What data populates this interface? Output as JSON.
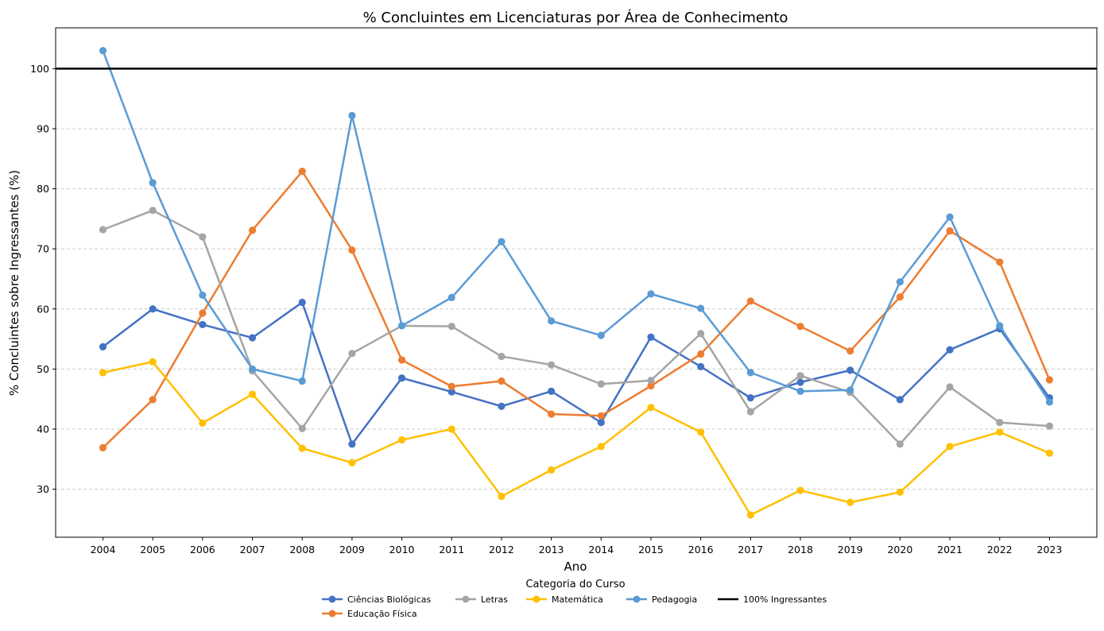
{
  "chart_data": {
    "type": "line",
    "title": "% Concluintes em Licenciaturas por Área de Conhecimento",
    "xlabel": "Ano",
    "ylabel": "% Concluintes sobre Ingressantes (%)",
    "x": [
      2004,
      2005,
      2006,
      2007,
      2008,
      2009,
      2010,
      2011,
      2012,
      2013,
      2014,
      2015,
      2016,
      2017,
      2018,
      2019,
      2020,
      2021,
      2022,
      2023
    ],
    "yticks": [
      30,
      40,
      50,
      60,
      70,
      80,
      90,
      100
    ],
    "ylim": [
      22,
      106.8
    ],
    "grid": "y dashed",
    "legend_title": "Categoria do Curso",
    "legend_position": "below",
    "series": [
      {
        "name": "Ciências Biológicas",
        "color": "#4472c4",
        "values": [
          53.7,
          60.0,
          57.4,
          55.2,
          61.1,
          37.5,
          48.5,
          46.2,
          43.8,
          46.3,
          41.1,
          55.3,
          50.4,
          45.2,
          47.8,
          49.8,
          44.9,
          53.2,
          56.7,
          45.2
        ]
      },
      {
        "name": "Educação Física",
        "color": "#ed7d31",
        "values": [
          36.9,
          44.9,
          59.3,
          73.1,
          82.9,
          69.8,
          51.5,
          47.1,
          48.0,
          42.5,
          42.2,
          47.2,
          52.5,
          61.3,
          57.1,
          53.0,
          62.0,
          73.0,
          67.8,
          48.2
        ]
      },
      {
        "name": "Letras",
        "color": "#a5a5a5",
        "values": [
          73.2,
          76.4,
          72.0,
          49.7,
          40.1,
          52.6,
          57.2,
          57.1,
          52.1,
          50.7,
          47.5,
          48.1,
          55.9,
          42.9,
          48.9,
          46.1,
          37.5,
          47.0,
          41.1,
          40.5
        ]
      },
      {
        "name": "Matemática",
        "color": "#ffc000",
        "values": [
          49.4,
          51.2,
          41.0,
          45.8,
          36.8,
          34.4,
          38.2,
          40.0,
          28.8,
          33.2,
          37.1,
          43.6,
          39.5,
          25.7,
          29.8,
          27.8,
          29.5,
          37.1,
          39.5,
          36.0
        ]
      },
      {
        "name": "Pedagogia",
        "color": "#5b9bd5",
        "values": [
          103.0,
          81.0,
          62.3,
          50.0,
          48.0,
          92.2,
          57.2,
          61.9,
          71.2,
          58.0,
          55.6,
          62.5,
          60.1,
          49.4,
          46.3,
          46.5,
          64.5,
          75.3,
          57.2,
          44.5
        ]
      }
    ],
    "reference_line": {
      "name": "100% Ingressantes",
      "value": 100,
      "color": "#000000"
    }
  }
}
